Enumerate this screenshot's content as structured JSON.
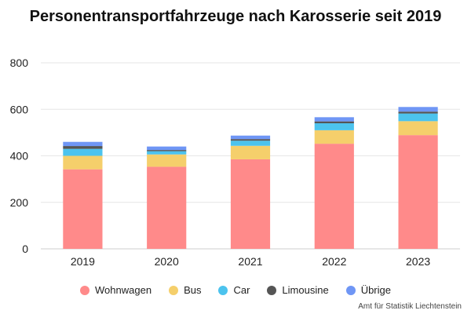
{
  "chart_data": {
    "type": "bar",
    "stacked": true,
    "title": "Personentransportfahrzeuge nach Karosserie seit 2019",
    "categories": [
      "2019",
      "2020",
      "2021",
      "2022",
      "2023"
    ],
    "ylim": [
      0,
      800
    ],
    "yticks": [
      "0",
      "200",
      "400",
      "600",
      "800"
    ],
    "grid": true,
    "legend_position": "bottom",
    "series": [
      {
        "name": "Wohnwagen",
        "color": "#ff8a8a",
        "values": [
          342,
          353,
          385,
          452,
          489
        ]
      },
      {
        "name": "Bus",
        "color": "#f5cf6b",
        "values": [
          58,
          53,
          58,
          58,
          60
        ]
      },
      {
        "name": "Car",
        "color": "#4cc3ee",
        "values": [
          30,
          14,
          22,
          30,
          33
        ]
      },
      {
        "name": "Limousine",
        "color": "#555555",
        "values": [
          12,
          5,
          7,
          8,
          8
        ]
      },
      {
        "name": "Übrige",
        "color": "#6f96f5",
        "values": [
          18,
          15,
          15,
          18,
          20
        ]
      }
    ]
  },
  "credit": "Amt für Statistik Liechtenstein"
}
